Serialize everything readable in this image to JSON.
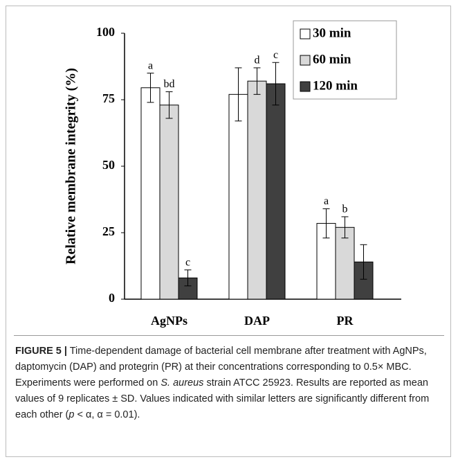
{
  "chart_data": {
    "type": "bar",
    "y_label": "Relative membrane integrity (%)",
    "categories": [
      "AgNPs",
      "DAP",
      "PR"
    ],
    "series": [
      {
        "name": "30 min",
        "color": "#ffffff",
        "values": [
          79.5,
          77,
          28.5
        ],
        "errors": [
          5.5,
          10,
          5.5
        ],
        "annotations": [
          "a",
          null,
          "a"
        ]
      },
      {
        "name": "60 min",
        "color": "#d9d9d9",
        "values": [
          73,
          82,
          27
        ],
        "errors": [
          5,
          5,
          4
        ],
        "annotations": [
          "bd",
          "d",
          "b"
        ]
      },
      {
        "name": "120 min",
        "color": "#404040",
        "values": [
          8,
          81,
          14
        ],
        "errors": [
          3,
          8,
          6.5
        ],
        "annotations": [
          "c",
          "c",
          null
        ]
      }
    ],
    "ylim": [
      0,
      100
    ],
    "yticks": [
      0,
      25,
      50,
      75,
      100
    ],
    "legend": "top-right"
  },
  "caption": {
    "label": "FIGURE 5 |",
    "parts": [
      " Time-dependent damage of bacterial cell membrane after treatment with AgNPs, daptomycin (DAP) and protegrin (PR) at their concentrations corresponding to 0.5× MBC. Experiments were performed on ",
      "S. aureus",
      " strain ATCC 25923. Results are reported as mean values of 9 replicates ± SD. Values indicated with similar letters are significantly different from each other (",
      "p",
      " < α, α = 0.01)."
    ]
  }
}
